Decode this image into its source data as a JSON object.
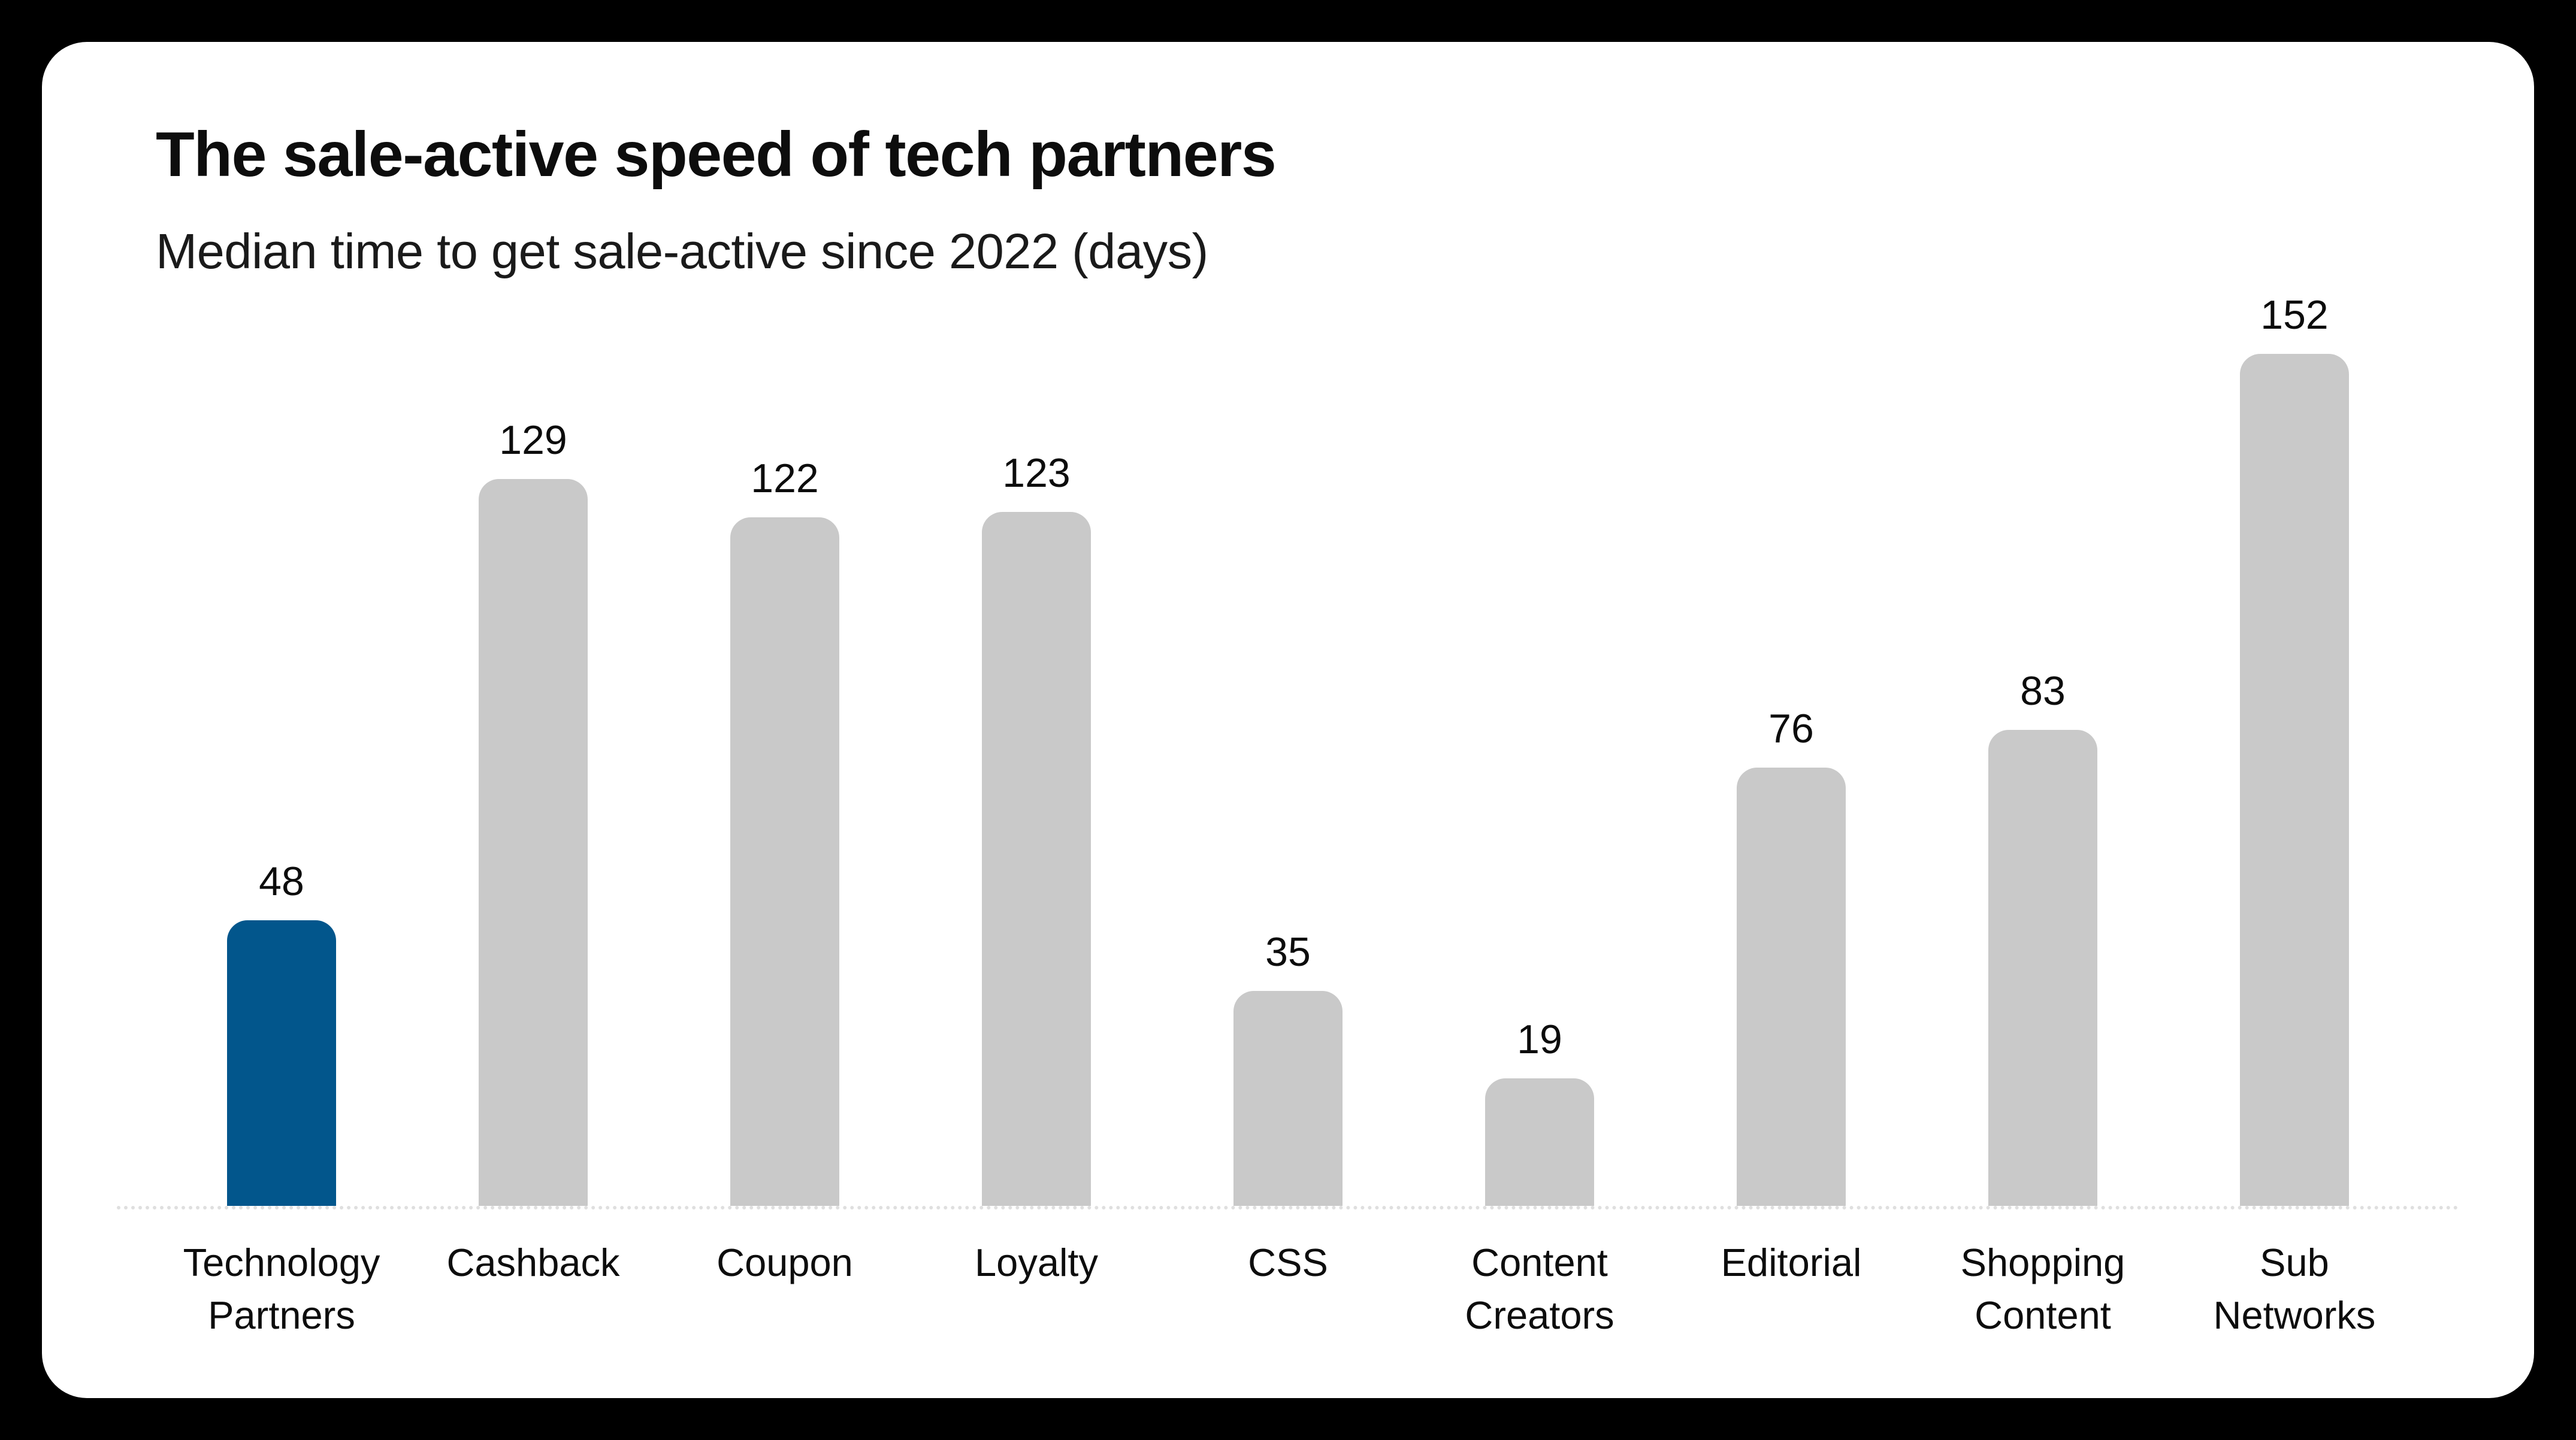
{
  "page": {
    "background_color": "#000000",
    "card_background_color": "#FFFFFF"
  },
  "chart_data": {
    "type": "bar",
    "title": "The sale-active speed of tech partners",
    "subtitle": "Median time to get sale-active since 2022 (days)",
    "categories": [
      "Technology Partners",
      "Cashback",
      "Coupon",
      "Loyalty",
      "CSS",
      "Content Creators",
      "Editorial",
      "Shopping Content",
      "Sub Networks"
    ],
    "category_lines": [
      [
        "Technology",
        "Partners"
      ],
      [
        "Cashback"
      ],
      [
        "Coupon"
      ],
      [
        "Loyalty"
      ],
      [
        "CSS"
      ],
      [
        "Content",
        "Creators"
      ],
      [
        "Editorial"
      ],
      [
        "Shopping",
        "Content"
      ],
      [
        "Sub",
        "Networks"
      ]
    ],
    "values": [
      48,
      129,
      122,
      123,
      35,
      19,
      76,
      83,
      152
    ],
    "value_labels_shown": true,
    "highlight_index": 0,
    "highlight_category": "Technology Partners",
    "colors": {
      "highlight_bar": "#02568C",
      "default_bar": "#C9C9C9",
      "label_text": "#0D0D0D",
      "baseline": "#DFDFDF"
    },
    "layout": {
      "legend": "none",
      "y_axis_visible": false,
      "x_axis_visible": false,
      "baseline_style": "dotted",
      "bar_corner": "rounded-top",
      "ylim": [
        0,
        160
      ]
    }
  }
}
